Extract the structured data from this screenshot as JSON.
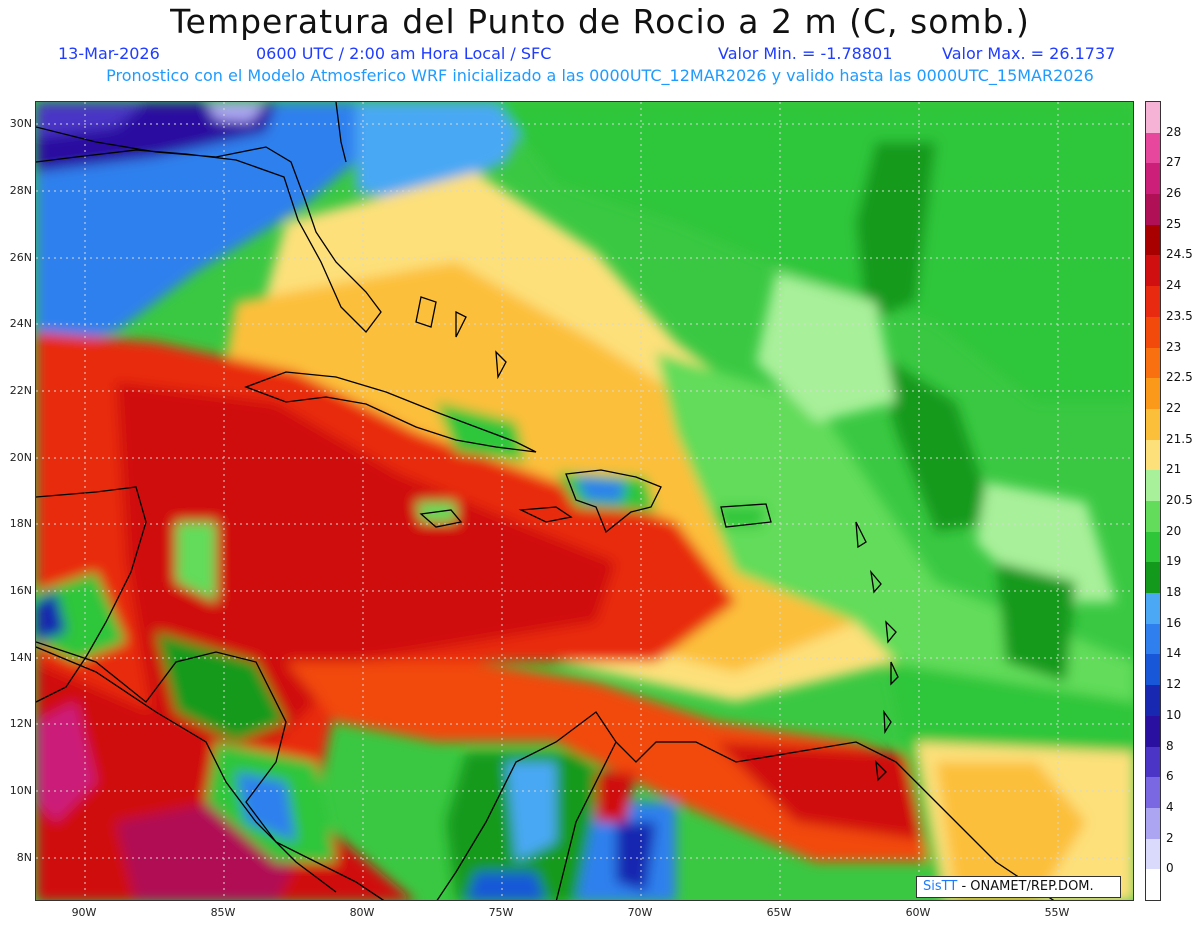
{
  "header": {
    "title": "Temperatura del Punto de Rocio a 2 m (C, somb.)",
    "date": "13-Mar-2026",
    "time": "0600 UTC / 2:00 am Hora Local / SFC",
    "min": "Valor Min. = -1.78801",
    "max": "Valor Max. = 26.1737",
    "model_line": "Pronostico con el Modelo Atmosferico WRF inicializado a las 0000UTC_12MAR2026 y valido hasta las 0000UTC_15MAR2026"
  },
  "axes": {
    "lat_labels": [
      "30N",
      "28N",
      "26N",
      "24N",
      "22N",
      "20N",
      "18N",
      "16N",
      "14N",
      "12N",
      "10N",
      "8N"
    ],
    "lon_labels": [
      "90W",
      "85W",
      "80W",
      "75W",
      "70W",
      "65W",
      "60W",
      "55W"
    ]
  },
  "colorbar": {
    "labels": [
      "28",
      "27",
      "26",
      "25",
      "24.5",
      "24",
      "23.5",
      "23",
      "22.5",
      "22",
      "21.5",
      "21",
      "20.5",
      "20",
      "19",
      "18",
      "16",
      "14",
      "12",
      "10",
      "8",
      "6",
      "4",
      "2",
      "0"
    ],
    "colors": [
      "#f7b3d6",
      "#e8479e",
      "#cc1f7a",
      "#b01055",
      "#a80000",
      "#d01010",
      "#e82a10",
      "#f24a0a",
      "#f87010",
      "#fb9a1a",
      "#fcbf3a",
      "#fde07a",
      "#a8f09a",
      "#62dc5a",
      "#2fc63a",
      "#139a1c",
      "#4aa8f4",
      "#2f80ee",
      "#1858d8",
      "#1828b0",
      "#2a10a0",
      "#4a35c6",
      "#7a68e2",
      "#aca6f2",
      "#dadafc"
    ],
    "bottom_color": "#ffffff"
  },
  "credit": {
    "logo": "SisTT",
    "text": "- ONAMET/REP.DOM."
  }
}
